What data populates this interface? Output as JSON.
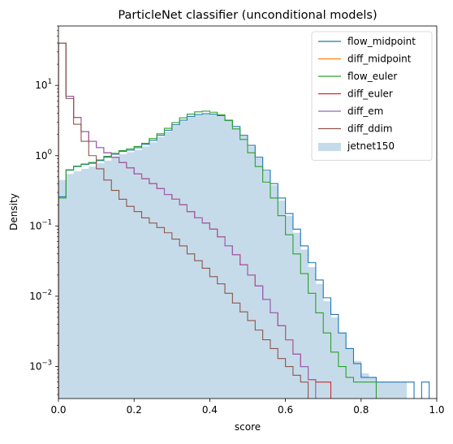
{
  "chart_data": {
    "type": "histogram-step",
    "title": "ParticleNet classifier (unconditional models)",
    "xlabel": "score",
    "ylabel": "Density",
    "xlim": [
      0.0,
      1.0
    ],
    "ylim": [
      0.00035,
      70
    ],
    "yscale": "log",
    "bin_width": 0.02,
    "x_ticks": [
      0.0,
      0.2,
      0.4,
      0.6,
      0.8,
      1.0
    ],
    "x_tick_labels": [
      "0.0",
      "0.2",
      "0.4",
      "0.6",
      "0.8",
      "1.0"
    ],
    "y_ticks": [
      0.001,
      0.01,
      0.1,
      1,
      10
    ],
    "legend_position": "top-right",
    "grid": false,
    "series": [
      {
        "name": "flow_midpoint",
        "color": "#1f77b4",
        "style": "step",
        "values": [
          0.26,
          0.63,
          0.71,
          0.75,
          0.78,
          0.85,
          0.95,
          1.05,
          1.15,
          1.2,
          1.3,
          1.45,
          1.65,
          1.95,
          2.3,
          2.75,
          3.2,
          3.6,
          3.85,
          3.95,
          3.9,
          3.7,
          3.2,
          2.6,
          1.95,
          1.4,
          0.95,
          0.62,
          0.4,
          0.25,
          0.15,
          0.09,
          0.052,
          0.03,
          0.017,
          0.0095,
          0.0055,
          0.003,
          0.0018,
          0.0011,
          0.0007,
          0.0007,
          0.0006,
          0.0006,
          0.0006,
          0.0006,
          0.0006,
          0,
          0.0006,
          0
        ]
      },
      {
        "name": "diff_midpoint",
        "color": "#ff7f0e",
        "style": "step",
        "values": [
          40,
          7.0,
          3.5,
          2.2,
          1.6,
          1.3,
          1.1,
          0.95,
          0.8,
          0.67,
          0.55,
          0.47,
          0.4,
          0.34,
          0.28,
          0.24,
          0.2,
          0.16,
          0.13,
          0.11,
          0.09,
          0.07,
          0.052,
          0.039,
          0.028,
          0.02,
          0.014,
          0.009,
          0.0058,
          0.0038,
          0.0024,
          0.0015,
          0.001,
          0.00065,
          0,
          0,
          0,
          0,
          0,
          0,
          0,
          0,
          0,
          0,
          0,
          0,
          0,
          0,
          0,
          0
        ]
      },
      {
        "name": "flow_euler",
        "color": "#2ca02c",
        "style": "step",
        "values": [
          0.25,
          0.62,
          0.7,
          0.76,
          0.8,
          0.87,
          0.98,
          1.08,
          1.18,
          1.25,
          1.35,
          1.5,
          1.75,
          2.05,
          2.45,
          2.95,
          3.45,
          3.9,
          4.2,
          4.3,
          4.15,
          3.8,
          3.15,
          2.4,
          1.7,
          1.1,
          0.7,
          0.42,
          0.25,
          0.14,
          0.075,
          0.04,
          0.021,
          0.011,
          0.0058,
          0.003,
          0.0016,
          0.001,
          0.0007,
          0.0006,
          0.0006,
          0.0006,
          0,
          0,
          0,
          0,
          0,
          0,
          0,
          0
        ]
      },
      {
        "name": "diff_euler",
        "color": "#d62728",
        "style": "step",
        "values": [
          40,
          7.0,
          3.5,
          2.2,
          1.6,
          1.3,
          1.1,
          0.95,
          0.8,
          0.67,
          0.55,
          0.47,
          0.4,
          0.34,
          0.28,
          0.24,
          0.2,
          0.16,
          0.13,
          0.11,
          0.09,
          0.07,
          0.052,
          0.039,
          0.028,
          0.02,
          0.014,
          0.009,
          0.0058,
          0.0038,
          0.0024,
          0.0015,
          0.001,
          0.00065,
          0.0006,
          0.0006,
          0,
          0,
          0,
          0,
          0,
          0,
          0,
          0,
          0,
          0,
          0,
          0,
          0,
          0
        ]
      },
      {
        "name": "diff_em",
        "color": "#9467bd",
        "style": "step",
        "values": [
          40,
          7.0,
          3.5,
          2.2,
          1.6,
          1.3,
          1.1,
          0.95,
          0.8,
          0.67,
          0.55,
          0.47,
          0.4,
          0.34,
          0.28,
          0.24,
          0.2,
          0.16,
          0.13,
          0.11,
          0.09,
          0.07,
          0.052,
          0.039,
          0.028,
          0.02,
          0.014,
          0.009,
          0.0058,
          0.0038,
          0.0024,
          0.0015,
          0.001,
          0.00065,
          0,
          0,
          0,
          0,
          0,
          0,
          0,
          0,
          0,
          0,
          0,
          0,
          0,
          0,
          0,
          0
        ]
      },
      {
        "name": "diff_ddim",
        "color": "#8c564b",
        "style": "step",
        "values": [
          40,
          6.5,
          2.8,
          1.6,
          1.0,
          0.65,
          0.45,
          0.32,
          0.24,
          0.19,
          0.16,
          0.13,
          0.11,
          0.095,
          0.08,
          0.065,
          0.052,
          0.04,
          0.032,
          0.025,
          0.019,
          0.015,
          0.011,
          0.008,
          0.006,
          0.0045,
          0.0033,
          0.0024,
          0.0018,
          0.0013,
          0.001,
          0.00075,
          0.0006,
          0,
          0,
          0,
          0,
          0,
          0,
          0,
          0,
          0,
          0,
          0,
          0,
          0,
          0,
          0,
          0,
          0
        ]
      },
      {
        "name": "jetnet150",
        "color": "#c6dbea",
        "style": "filled",
        "values": [
          0.45,
          0.55,
          0.6,
          0.65,
          0.7,
          0.78,
          0.85,
          0.95,
          1.05,
          1.12,
          1.2,
          1.35,
          1.55,
          1.85,
          2.2,
          2.65,
          3.1,
          3.5,
          3.75,
          3.85,
          3.8,
          3.6,
          3.1,
          2.5,
          1.9,
          1.35,
          0.92,
          0.6,
          0.38,
          0.23,
          0.14,
          0.08,
          0.046,
          0.026,
          0.015,
          0.0085,
          0.005,
          0.003,
          0.0018,
          0.0012,
          0.0008,
          0.0007,
          0.0006,
          0.0006,
          0.0006,
          0.0006,
          0,
          0,
          0,
          0
        ]
      }
    ]
  }
}
